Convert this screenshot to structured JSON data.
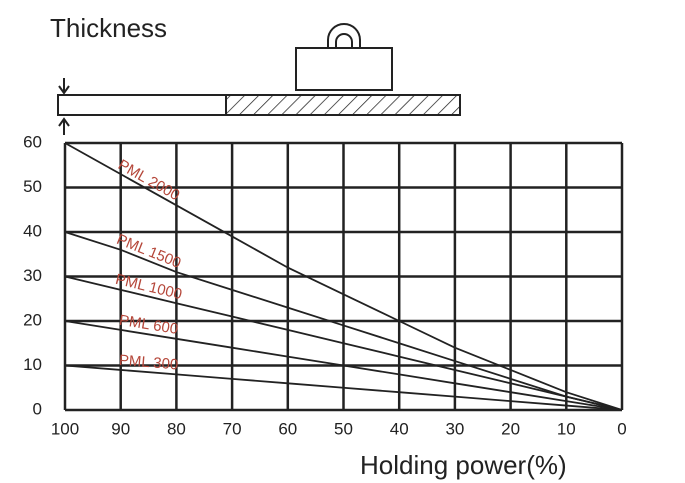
{
  "chart_data": {
    "type": "line",
    "y_label": "Thickness",
    "x_label": "Holding power(%)",
    "x": [
      100,
      90,
      80,
      70,
      60,
      50,
      40,
      30,
      20,
      10,
      0
    ],
    "xlim": [
      100,
      0
    ],
    "xticks": [
      100,
      90,
      80,
      70,
      60,
      50,
      40,
      30,
      20,
      10,
      0
    ],
    "ylim": [
      0,
      60
    ],
    "yticks": [
      0,
      10,
      20,
      30,
      40,
      50,
      60
    ],
    "grid": true,
    "label_color": "#b5473a",
    "series": [
      {
        "name": "PML 2000",
        "color": "#222222",
        "values": [
          60,
          53,
          46,
          39,
          32,
          26,
          20,
          14,
          9,
          4,
          0
        ]
      },
      {
        "name": "PML 1500",
        "color": "#222222",
        "values": [
          40,
          36,
          31,
          27,
          23,
          19,
          15,
          11,
          7,
          3,
          0
        ]
      },
      {
        "name": "PML 1000",
        "color": "#222222",
        "values": [
          30,
          27,
          24,
          21,
          18,
          15,
          12,
          9,
          6,
          3,
          0
        ]
      },
      {
        "name": "PML 600",
        "color": "#222222",
        "values": [
          20,
          18,
          16,
          14,
          12,
          10,
          8,
          6,
          4,
          2,
          0
        ]
      },
      {
        "name": "PML 300",
        "color": "#222222",
        "values": [
          10,
          9,
          8,
          7,
          6,
          5,
          4,
          3,
          2,
          1,
          0
        ]
      }
    ]
  }
}
